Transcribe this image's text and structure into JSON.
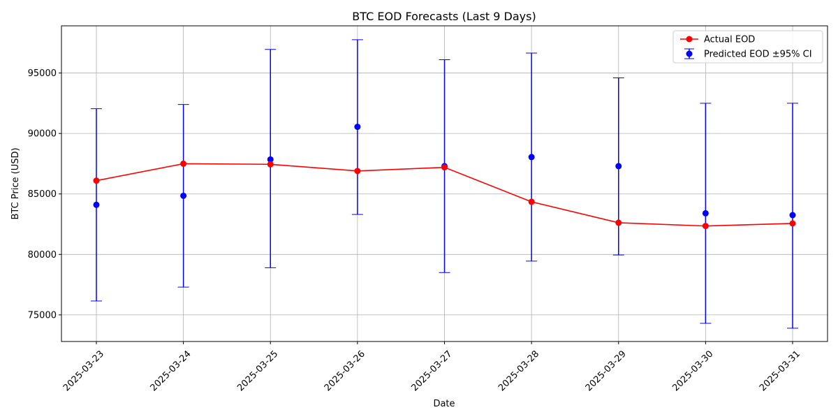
{
  "chart_data": {
    "type": "line",
    "title": "BTC EOD Forecasts (Last 9 Days)",
    "xlabel": "Date",
    "ylabel": "BTC Price (USD)",
    "x": [
      "2025-03-23",
      "2025-03-24",
      "2025-03-25",
      "2025-03-26",
      "2025-03-27",
      "2025-03-28",
      "2025-03-29",
      "2025-03-30",
      "2025-03-31"
    ],
    "ylim": [
      72800,
      98900
    ],
    "yticks": [
      75000,
      80000,
      85000,
      90000,
      95000
    ],
    "ytick_labels": [
      "75000",
      "80000",
      "85000",
      "90000",
      "95000"
    ],
    "grid": true,
    "legend_position": "top-right",
    "series": [
      {
        "name": "Actual EOD",
        "kind": "line-with-markers",
        "color": "#ff0000",
        "values": [
          86100,
          87500,
          87450,
          86900,
          87200,
          84350,
          82620,
          82350,
          82560
        ]
      },
      {
        "name": "Predicted EOD ±95% CI",
        "kind": "errorbar",
        "color": "#0000ff",
        "values": [
          84100,
          84850,
          87850,
          90550,
          87300,
          88050,
          87300,
          83400,
          83250
        ],
        "lower": [
          76150,
          77300,
          78900,
          83300,
          78500,
          79450,
          79950,
          74300,
          73900
        ],
        "upper": [
          92050,
          92400,
          96950,
          97750,
          96100,
          96650,
          94600,
          92500,
          92500
        ]
      }
    ]
  }
}
